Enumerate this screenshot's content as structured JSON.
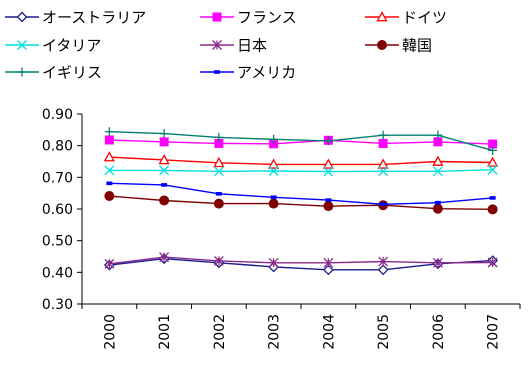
{
  "chart_data": {
    "type": "line",
    "title": "",
    "xlabel": "",
    "ylabel": "",
    "x": [
      "2000",
      "2001",
      "2002",
      "2003",
      "2004",
      "2005",
      "2006",
      "2007"
    ],
    "ylim": [
      0.3,
      0.9
    ],
    "yticks": [
      "0.30",
      "0.40",
      "0.50",
      "0.60",
      "0.70",
      "0.80",
      "0.90"
    ],
    "grid": false,
    "legend_position": "top",
    "series": [
      {
        "name": "オーストラリア",
        "color": "#1c1c8c",
        "marker": "diamond-open",
        "values": [
          0.423,
          0.443,
          0.43,
          0.417,
          0.408,
          0.408,
          0.427,
          0.437
        ]
      },
      {
        "name": "フランス",
        "color": "#ff00ff",
        "marker": "square-filled",
        "values": [
          0.818,
          0.812,
          0.807,
          0.806,
          0.817,
          0.807,
          0.812,
          0.805
        ]
      },
      {
        "name": "ドイツ",
        "color": "#ff0000",
        "marker": "triangle-open",
        "values": [
          0.764,
          0.755,
          0.746,
          0.741,
          0.741,
          0.741,
          0.75,
          0.747
        ]
      },
      {
        "name": "イタリア",
        "color": "#00e0e0",
        "marker": "x",
        "values": [
          0.722,
          0.722,
          0.719,
          0.72,
          0.718,
          0.719,
          0.719,
          0.724
        ]
      },
      {
        "name": "日本",
        "color": "#8b2a8b",
        "marker": "star",
        "values": [
          0.427,
          0.448,
          0.436,
          0.43,
          0.43,
          0.434,
          0.43,
          0.431
        ]
      },
      {
        "name": "韓国",
        "color": "#800000",
        "marker": "circle-filled",
        "values": [
          0.641,
          0.627,
          0.617,
          0.617,
          0.609,
          0.612,
          0.601,
          0.599
        ]
      },
      {
        "name": "イギリス",
        "color": "#00806f",
        "marker": "plus",
        "values": [
          0.844,
          0.838,
          0.826,
          0.82,
          0.815,
          0.833,
          0.833,
          0.785
        ]
      },
      {
        "name": "アメリカ",
        "color": "#0000ff",
        "marker": "dash",
        "values": [
          0.681,
          0.676,
          0.648,
          0.637,
          0.628,
          0.615,
          0.62,
          0.635
        ]
      }
    ]
  }
}
